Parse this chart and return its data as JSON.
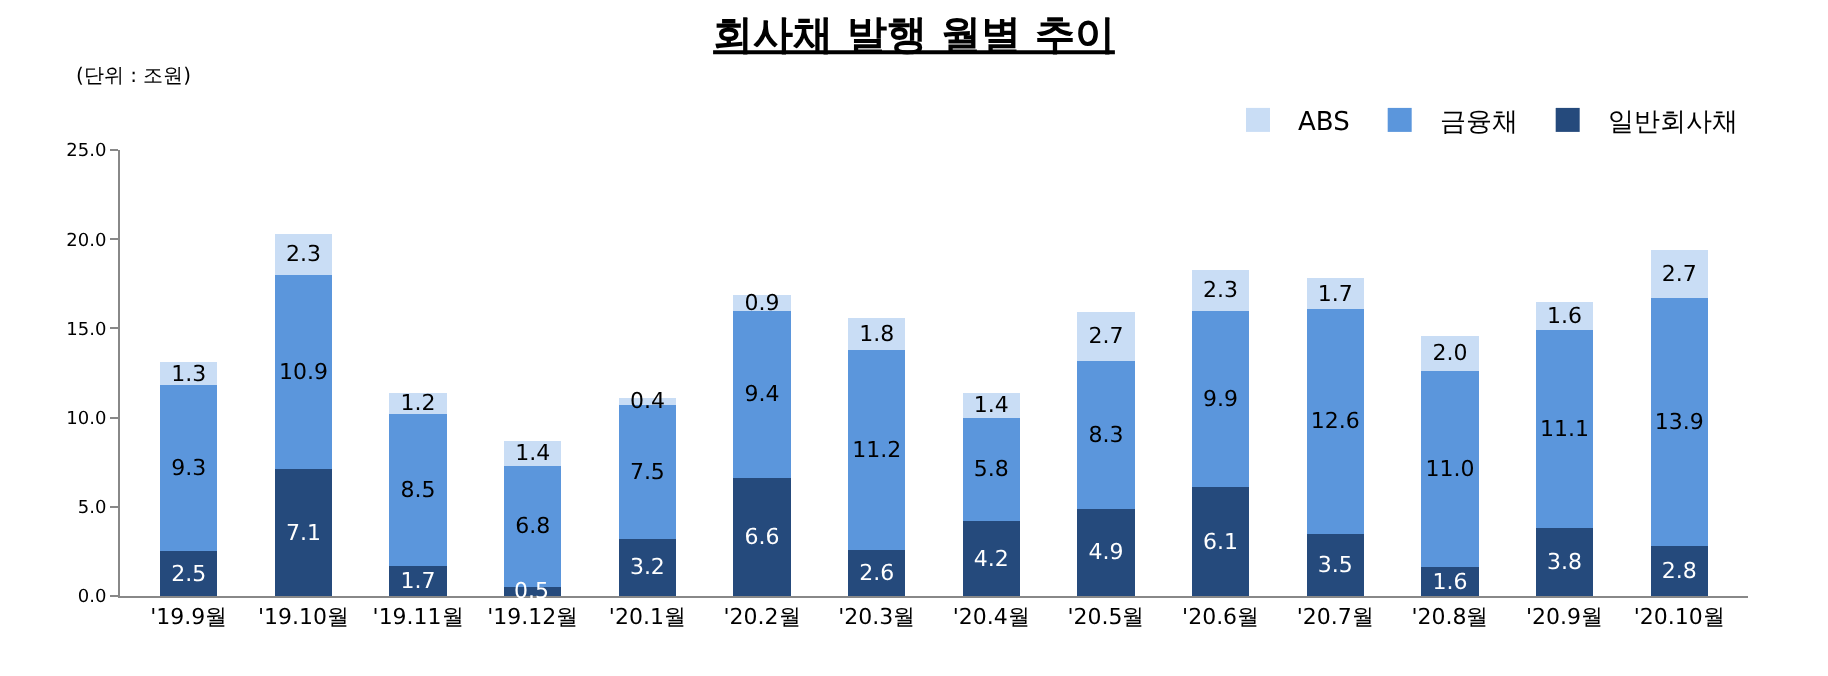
{
  "chart_data": {
    "type": "bar",
    "title": "회사채 발행 월별 추이",
    "stacked": true,
    "legend": "top right",
    "annotations": [
      "(단위 : 조원)"
    ],
    "categories": [
      "'19.9월",
      "'19.10월",
      "'19.11월",
      "'19.12월",
      "'20.1월",
      "'20.2월",
      "'20.3월",
      "'20.4월",
      "'20.5월",
      "'20.6월",
      "'20.7월",
      "'20.8월",
      "'20.9월",
      "'20.10월"
    ],
    "ylim": [
      0,
      25
    ],
    "yticks": [
      {
        "value": 0,
        "label": "0.0"
      },
      {
        "value": 5,
        "label": "5.0"
      },
      {
        "value": 10,
        "label": "10.0"
      },
      {
        "value": 15,
        "label": "15.0"
      },
      {
        "value": 20,
        "label": "20.0"
      },
      {
        "value": 25,
        "label": "25.0"
      }
    ],
    "series": [
      {
        "name": "일반회사채",
        "color": "#254a7c",
        "values": [
          2.5,
          7.1,
          1.7,
          0.5,
          3.2,
          6.6,
          2.6,
          4.2,
          4.9,
          6.1,
          3.5,
          1.6,
          3.8,
          2.8
        ],
        "value_labels": [
          "2.5",
          "7.1",
          "1.7",
          "0.5",
          "3.2",
          "6.6",
          "2.6",
          "4.2",
          "4.9",
          "6.1",
          "3.5",
          "1.6",
          "3.8",
          "2.8"
        ]
      },
      {
        "name": "금융채",
        "color": "#5b96dc",
        "values": [
          9.3,
          10.9,
          8.5,
          6.8,
          7.5,
          9.4,
          11.2,
          5.8,
          8.3,
          9.9,
          12.6,
          11.0,
          11.1,
          13.9
        ],
        "value_labels": [
          "9.3",
          "10.9",
          "8.5",
          "6.8",
          "7.5",
          "9.4",
          "11.2",
          "5.8",
          "8.3",
          "9.9",
          "12.6",
          "11.0",
          "11.1",
          "13.9"
        ]
      },
      {
        "name": "ABS",
        "color": "#c9ddf5",
        "values": [
          1.3,
          2.3,
          1.2,
          1.4,
          0.4,
          0.9,
          1.8,
          1.4,
          2.7,
          2.3,
          1.7,
          2.0,
          1.6,
          2.7
        ],
        "value_labels": [
          "1.3",
          "2.3",
          "1.2",
          "1.4",
          "0.4",
          "0.9",
          "1.8",
          "1.4",
          "2.7",
          "2.3",
          "1.7",
          "2.0",
          "1.6",
          "2.7"
        ]
      }
    ]
  }
}
